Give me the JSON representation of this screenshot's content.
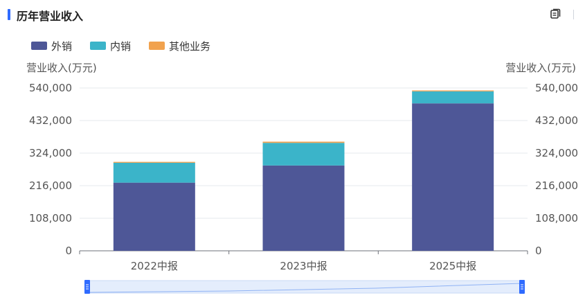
{
  "panel": {
    "title": "历年营业收入",
    "copy_icon": "copy-icon",
    "accent_color": "#2f6bff"
  },
  "chart_data": {
    "type": "bar",
    "stacked": true,
    "categories": [
      "2022中报",
      "2023中报",
      "2025中报"
    ],
    "series": [
      {
        "name": "外销",
        "color": "#4e5797",
        "values": [
          226000,
          283000,
          489000
        ]
      },
      {
        "name": "内销",
        "color": "#3bb4c9",
        "values": [
          66000,
          75000,
          40000
        ]
      },
      {
        "name": "其他业务",
        "color": "#f1a24e",
        "values": [
          3000,
          4000,
          3000
        ]
      }
    ],
    "ylabel_left": "营业收入(万元)",
    "ylabel_right": "营业收入(万元)",
    "ylim": [
      0,
      540000
    ],
    "yticks": [
      0,
      108000,
      216000,
      324000,
      432000,
      540000
    ],
    "ytick_labels": [
      "0",
      "108,000",
      "216,000",
      "324,000",
      "432,000",
      "540,000"
    ],
    "legend_position": "top-left",
    "grid": true,
    "data_zoom": {
      "start": 0,
      "end": 100,
      "color": "#5b8ff9"
    }
  }
}
